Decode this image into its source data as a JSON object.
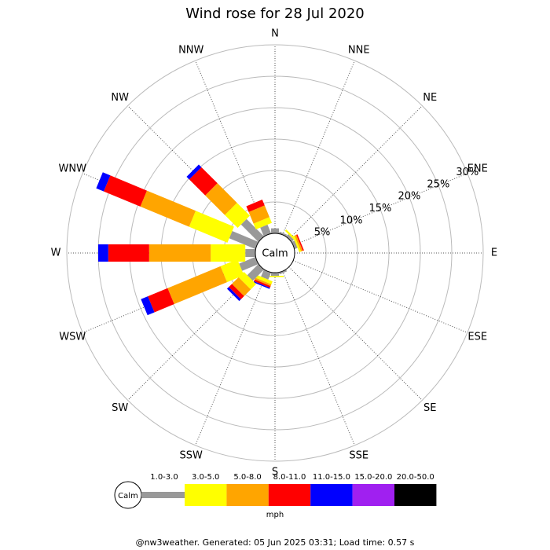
{
  "chart_data": {
    "type": "polar-bar",
    "title": "Wind rose for 28 Jul 2020",
    "categories": [
      "N",
      "NNE",
      "NE",
      "ENE",
      "E",
      "ESE",
      "SE",
      "SSE",
      "S",
      "SSW",
      "SW",
      "WSW",
      "W",
      "WNW",
      "NW",
      "NNW"
    ],
    "center_label": "Calm",
    "ylim": [
      0,
      30
    ],
    "yticks": [
      {
        "value": 5,
        "label": "5%"
      },
      {
        "value": 10,
        "label": "10%"
      },
      {
        "value": 15,
        "label": "15%"
      },
      {
        "value": 20,
        "label": "20%"
      },
      {
        "value": 25,
        "label": "25%"
      },
      {
        "value": 30,
        "label": "30%"
      }
    ],
    "grid": true,
    "legend_unit": "mph",
    "series": [
      {
        "name": "1.0-3.0",
        "color": "#999999",
        "values": [
          0.8,
          0.3,
          0.5,
          0.5,
          0,
          0,
          0,
          0.3,
          0.5,
          1.2,
          2.5,
          2.8,
          1.6,
          4.5,
          3.9,
          1.5
        ]
      },
      {
        "name": "3.0-5.0",
        "color": "#ffff00",
        "values": [
          0,
          0,
          0.3,
          0.3,
          0,
          0,
          0,
          0,
          0.2,
          0.5,
          1.2,
          2.9,
          5.5,
          6.6,
          2.9,
          1.0
        ]
      },
      {
        "name": "5.0-8.0",
        "color": "#ffa500",
        "values": [
          0,
          0,
          0,
          0.3,
          0,
          0,
          0,
          0,
          0,
          0.3,
          1.5,
          9.1,
          9.8,
          8.4,
          4.4,
          2.0
        ]
      },
      {
        "name": "8.0-11.0",
        "color": "#ff0000",
        "values": [
          0,
          0,
          0,
          0.2,
          0,
          0,
          0,
          0,
          0,
          0.3,
          0.7,
          3.4,
          6.5,
          6.3,
          3.6,
          1.0
        ]
      },
      {
        "name": "11.0-15.0",
        "color": "#0000ff",
        "values": [
          0,
          0,
          0,
          0,
          0,
          0,
          0,
          0,
          0,
          0.2,
          0.4,
          1.2,
          1.6,
          1.3,
          0.6,
          0
        ]
      },
      {
        "name": "15.0-20.0",
        "color": "#a020f0",
        "values": [
          0,
          0,
          0,
          0,
          0,
          0,
          0,
          0,
          0,
          0,
          0,
          0,
          0,
          0,
          0,
          0
        ]
      },
      {
        "name": "20.0-50.0",
        "color": "#000000",
        "values": [
          0,
          0,
          0,
          0,
          0,
          0,
          0,
          0,
          0,
          0,
          0,
          0,
          0,
          0,
          0,
          0
        ]
      }
    ],
    "footer": "@nw3weather. Generated: 05 Jun 2025 03:31; Load time: 0.57 s"
  }
}
